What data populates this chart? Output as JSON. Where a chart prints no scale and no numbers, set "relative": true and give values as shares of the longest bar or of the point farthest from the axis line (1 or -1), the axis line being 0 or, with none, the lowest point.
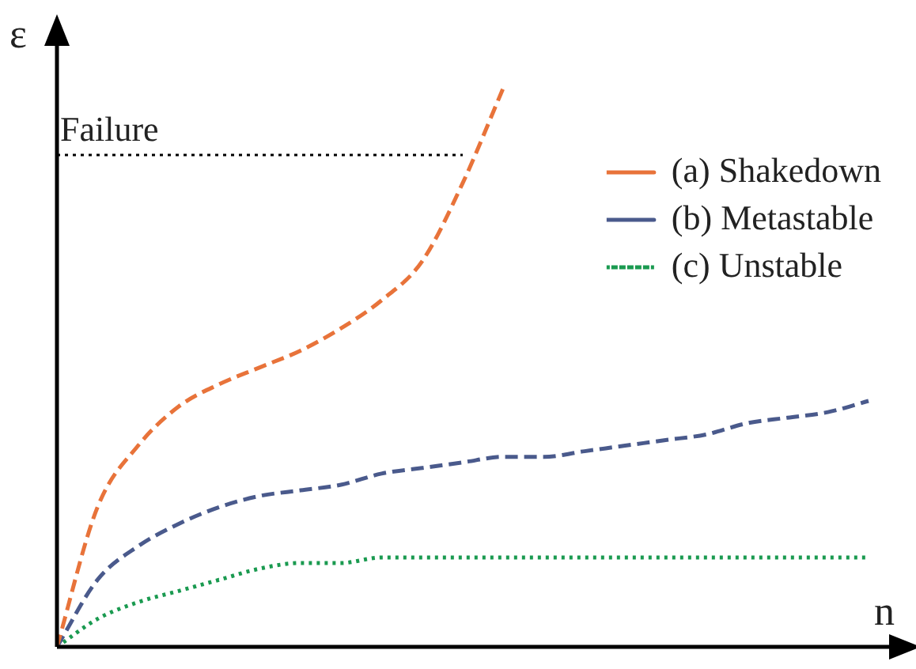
{
  "chart_data": {
    "type": "line",
    "relative": true,
    "xlabel": "n",
    "ylabel": "ε",
    "categories": [
      null,
      null,
      null,
      null,
      null,
      null,
      null,
      null,
      null,
      null,
      null,
      null,
      null,
      null,
      null,
      null,
      null,
      null,
      null,
      null,
      null
    ],
    "series": [
      {
        "name": "(a) Shakedown",
        "color": "#e8733a",
        "line_style": "dashed",
        "values": [
          0,
          0.25,
          0.36,
          0.43,
          0.47,
          0.5,
          0.53,
          0.57,
          0.62,
          0.69,
          0.83,
          1,
          null,
          null,
          null,
          null,
          null,
          null,
          null,
          null,
          null
        ]
      },
      {
        "name": "(b) Metastable",
        "color": "#4a5a8c",
        "line_style": "dashed",
        "values": [
          0,
          0.12,
          0.18,
          0.22,
          0.25,
          0.27,
          0.28,
          0.29,
          0.31,
          0.32,
          0.33,
          0.34,
          0.34,
          0.35,
          0.36,
          0.37,
          0.38,
          0.4,
          0.41,
          0.42,
          0.44
        ]
      },
      {
        "name": "(c) Unstable",
        "color": "#1a9a50",
        "line_style": "dotted",
        "values": [
          0,
          0.05,
          0.08,
          0.1,
          0.12,
          0.14,
          0.15,
          0.15,
          0.16,
          0.16,
          0.16,
          0.16,
          0.16,
          0.16,
          0.16,
          0.16,
          0.16,
          0.16,
          0.16,
          0.16,
          0.16
        ]
      }
    ],
    "ref_lines": [
      {
        "axis": "y",
        "value": 0.88,
        "label": "Failure",
        "color": "#000000",
        "line_style": "dotted"
      }
    ],
    "legend": "top right",
    "grid": false,
    "marker": "none"
  }
}
